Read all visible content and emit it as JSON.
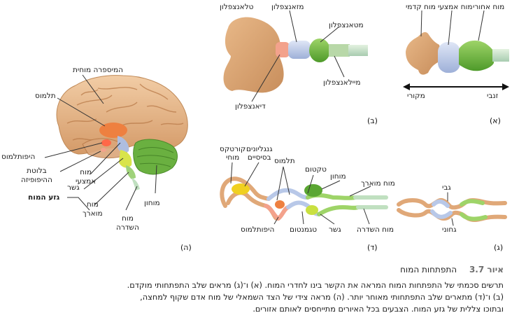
{
  "panels": {
    "a": {
      "label": "(א)",
      "forebrain": "מוח קדמי",
      "midbrain": "מוח אמצעי",
      "hindbrain": "מוח אחורי",
      "rostral": "מקורי",
      "caudal": "זנבי"
    },
    "b": {
      "label": "(ב)",
      "telencephalon": "טלאנצפלון",
      "mesencephalon": "מזאנצפלון",
      "metencephalon": "מטאנצפלון",
      "myelencephalon": "מיילאנצפלון",
      "diencephalon": "דיאנצפלון"
    },
    "c": {
      "label": "(ג)",
      "dorsal": "גבי",
      "ventral": "גחוני"
    },
    "d": {
      "label": "(ד)",
      "cortex_line1": "קורטקס",
      "cortex_line2": "מוחי",
      "basal_line1": "גנגליונים",
      "basal_line2": "בסיסיים",
      "thalamus": "תלמוס",
      "tectum": "טקטום",
      "cerebellum": "מוחון",
      "medulla": "מוח מוארך",
      "hypothalamus": "היפותלמוס",
      "tegmentum": "טגמנטום",
      "pons": "גשר",
      "spinal_cord": "מוח השדרה"
    },
    "e": {
      "label": "(ה)",
      "cerebral_hemisphere": "המיספרה מוחית",
      "thalamus": "תלמוס",
      "hypothalamus": "היפותלמוס",
      "pituitary_line1": "בלוטת",
      "pituitary_line2": "ההיפופיזה",
      "brainstem": "גזע המוח",
      "midbrain_line1": "מוח",
      "midbrain_line2": "אמצעי",
      "pons": "גשר",
      "medulla_line1": "מוח",
      "medulla_line2": "מוארך",
      "cerebellum": "מוחון",
      "spinal_line1": "מוח",
      "spinal_line2": "השדרה"
    }
  },
  "caption": {
    "figure_number": "איור 3.7",
    "title": "התפתחות המוח",
    "line1": "תרשים סכמתי של התפתחות המוח המראה את הקשר בינו לחדרי המוח. (א) ו־(ג) מראים שלב התפתחותי מוקדם.",
    "line2": "(ב) ו־(ד) מתארים שלב התפתחותי מאוחר יותר. (ה) מראה צידי של הצד השמאלי של מוח אדם שקוף למחצה,",
    "line3": "ובתוכו צללית של גזע המוח. הצבעים בכל האיורים מתייחסים לאותם אזורים."
  },
  "colors": {
    "forebrain": "#e0a878",
    "midbrain": "#b8c8e8",
    "hindbrain": "#7ab848",
    "diencephalon": "#f0a080",
    "thalamus": "#ee8040",
    "cerebellum": "#6ab040",
    "basal_ganglia": "#f0d020",
    "spinal": "#c0e0c0",
    "hypothalamus": "#ff8060",
    "tube_outline": "#d8a070"
  }
}
